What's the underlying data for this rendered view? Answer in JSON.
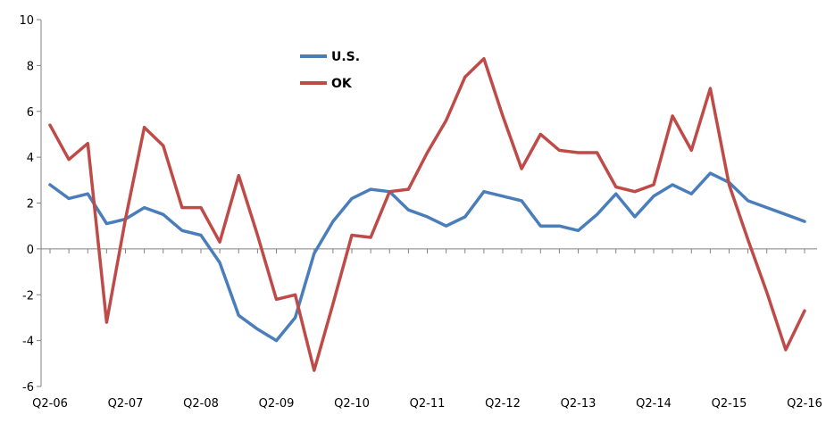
{
  "chart_data": {
    "type": "line",
    "x": [
      "Q2-06",
      "Q3-06",
      "Q4-06",
      "Q1-07",
      "Q2-07",
      "Q3-07",
      "Q4-07",
      "Q1-08",
      "Q2-08",
      "Q3-08",
      "Q4-08",
      "Q1-09",
      "Q2-09",
      "Q3-09",
      "Q4-09",
      "Q1-10",
      "Q2-10",
      "Q3-10",
      "Q4-10",
      "Q1-11",
      "Q2-11",
      "Q3-11",
      "Q4-11",
      "Q1-12",
      "Q2-12",
      "Q3-12",
      "Q4-12",
      "Q1-13",
      "Q2-13",
      "Q3-13",
      "Q4-13",
      "Q1-14",
      "Q2-14",
      "Q3-14",
      "Q4-14",
      "Q1-15",
      "Q2-15",
      "Q3-15",
      "Q4-15",
      "Q1-16",
      "Q2-16"
    ],
    "tick_labels": [
      "Q2-06",
      "Q2-07",
      "Q2-08",
      "Q2-09",
      "Q2-10",
      "Q2-11",
      "Q2-12",
      "Q2-13",
      "Q2-14",
      "Q2-15",
      "Q2-16"
    ],
    "ylim": [
      -6,
      10
    ],
    "y_ticks": [
      -6,
      -4,
      -2,
      0,
      2,
      4,
      6,
      8,
      10
    ],
    "grid": false,
    "legend_position": "top-center",
    "series": [
      {
        "name": "U.S.",
        "color": "#4A7EBB",
        "values": [
          2.8,
          2.2,
          2.4,
          1.1,
          1.3,
          1.8,
          1.5,
          0.8,
          0.6,
          -0.6,
          -2.9,
          -3.5,
          -4.0,
          -3.0,
          -0.2,
          1.2,
          2.2,
          2.6,
          2.5,
          1.7,
          1.4,
          1.0,
          1.4,
          2.5,
          2.3,
          2.1,
          1.0,
          1.0,
          0.8,
          1.5,
          2.4,
          1.4,
          2.3,
          2.8,
          2.4,
          3.3,
          2.9,
          2.1,
          1.8,
          1.5,
          1.2
        ]
      },
      {
        "name": "OK",
        "color": "#BE4B48",
        "values": [
          5.4,
          3.9,
          4.6,
          -3.2,
          1.3,
          5.3,
          4.5,
          1.8,
          1.8,
          0.3,
          3.2,
          0.6,
          -2.2,
          -2.0,
          -5.3,
          -2.4,
          0.6,
          0.5,
          2.5,
          2.6,
          4.2,
          5.6,
          7.5,
          8.3,
          5.8,
          3.5,
          5.0,
          4.3,
          4.2,
          4.2,
          2.7,
          2.5,
          2.8,
          5.8,
          4.3,
          7.0,
          2.8,
          0.4,
          -1.9,
          -4.4,
          -2.7
        ]
      }
    ]
  }
}
